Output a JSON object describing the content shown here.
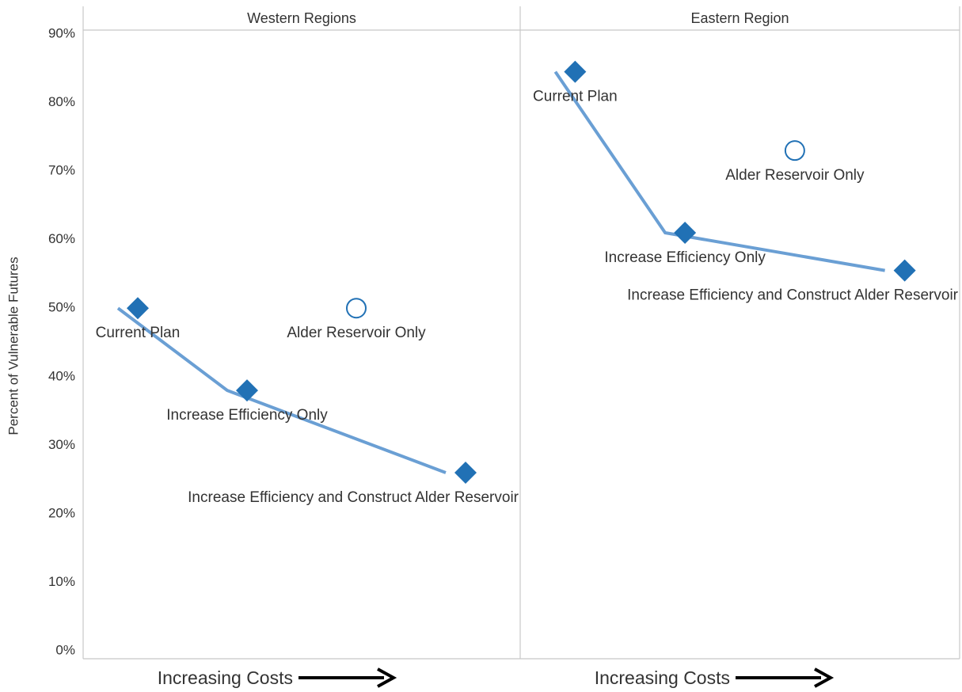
{
  "chart_data": [
    {
      "type": "scatter",
      "title": "Western Regions",
      "ylabel": "Percent of Vulnerable Futures",
      "xlabel": "Increasing Costs",
      "categories": [
        "Current Plan",
        "Increase Efficiency Only",
        "Alder Reservoir Only",
        "Increase Efficiency and Construct Alder Reservoir"
      ],
      "values": [
        50,
        38,
        50,
        26
      ],
      "markers": [
        "diamond",
        "diamond",
        "circle",
        "diamond"
      ],
      "color": "#2171b5",
      "line_color": "#6a9fd4",
      "ylim": [
        0,
        90
      ],
      "yticks": [
        {
          "value": 0,
          "label": "0%"
        },
        {
          "value": 10,
          "label": "10%"
        },
        {
          "value": 20,
          "label": "20%"
        },
        {
          "value": 30,
          "label": "30%"
        },
        {
          "value": 40,
          "label": "40%"
        },
        {
          "value": 50,
          "label": "50%"
        },
        {
          "value": 60,
          "label": "60%"
        },
        {
          "value": 70,
          "label": "70%"
        },
        {
          "value": 80,
          "label": "80%"
        },
        {
          "value": 90,
          "label": "90%"
        }
      ]
    },
    {
      "type": "scatter",
      "title": "Eastern Region",
      "xlabel": "Increasing Costs",
      "categories": [
        "Current Plan",
        "Increase Efficiency Only",
        "Alder Reservoir Only",
        "Increase Efficiency and Construct Alder Reservoir"
      ],
      "values": [
        84.5,
        61,
        73,
        55.5
      ],
      "markers": [
        "diamond",
        "diamond",
        "circle",
        "diamond"
      ],
      "color": "#2171b5",
      "line_color": "#6a9fd4",
      "ylim": [
        0,
        90
      ]
    }
  ]
}
